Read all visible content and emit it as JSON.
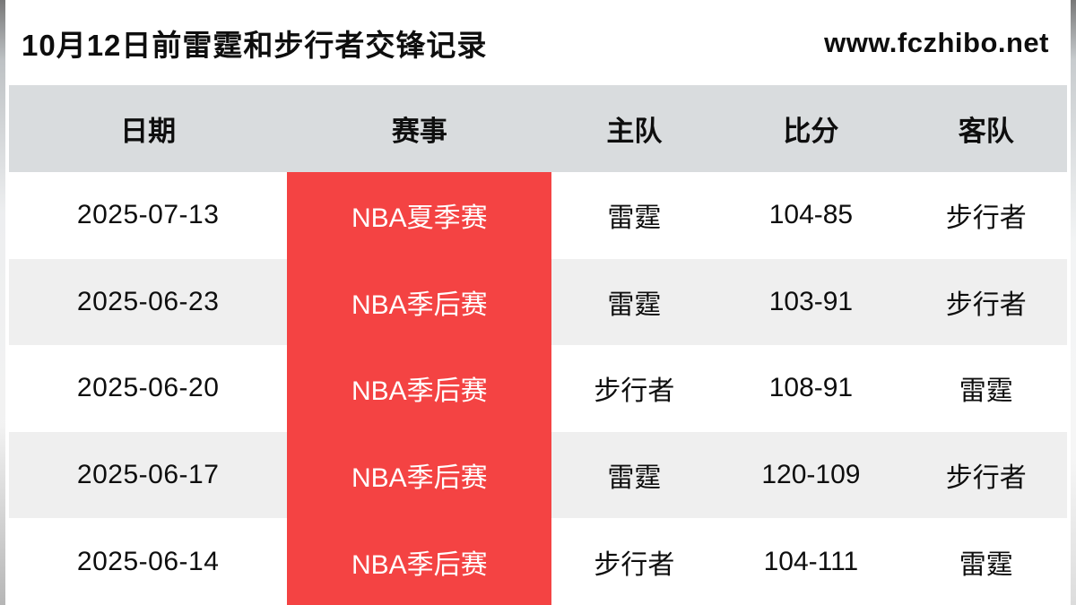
{
  "page": {
    "title": "10月12日前雷霆和步行者交锋记录",
    "site_url": "www.fczhibo.net"
  },
  "table": {
    "columns": [
      "日期",
      "赛事",
      "主队",
      "比分",
      "客队"
    ],
    "rows": [
      {
        "date": "2025-07-13",
        "event": "NBA夏季赛",
        "home": "雷霆",
        "score": "104-85",
        "away": "步行者"
      },
      {
        "date": "2025-06-23",
        "event": "NBA季后赛",
        "home": "雷霆",
        "score": "103-91",
        "away": "步行者"
      },
      {
        "date": "2025-06-20",
        "event": "NBA季后赛",
        "home": "步行者",
        "score": "108-91",
        "away": "雷霆"
      },
      {
        "date": "2025-06-17",
        "event": "NBA季后赛",
        "home": "雷霆",
        "score": "120-109",
        "away": "步行者"
      },
      {
        "date": "2025-06-14",
        "event": "NBA季后赛",
        "home": "步行者",
        "score": "104-111",
        "away": "雷霆"
      }
    ]
  },
  "colors": {
    "event_red": "#f44343",
    "header_bg": "#d9dcde",
    "stripe_bg": "#efefef",
    "text": "#0e0e0e"
  }
}
